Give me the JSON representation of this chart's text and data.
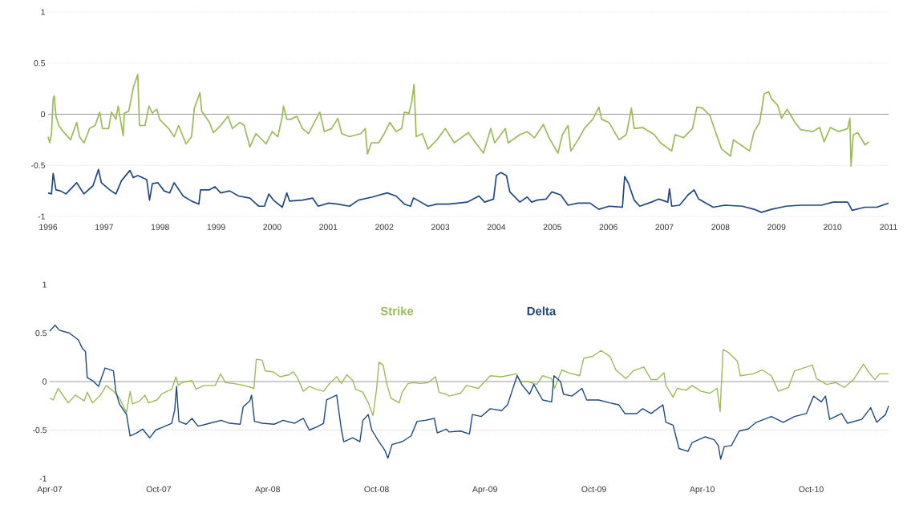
{
  "chart_data": [
    {
      "type": "line",
      "xlim": [
        1996,
        2011
      ],
      "xticks": [
        1996,
        1997,
        1998,
        1999,
        2000,
        2001,
        2002,
        2003,
        2004,
        2005,
        2006,
        2007,
        2008,
        2009,
        2010,
        2011
      ],
      "ylim": [
        -1,
        1
      ],
      "yticks": [
        -1,
        -0.5,
        0,
        0.5,
        1
      ],
      "grid": "y",
      "line_style": "solid",
      "series": [
        {
          "color": "#9bbb59",
          "x": [
            1996.0,
            1996.03,
            1996.06,
            1996.09,
            1996.11,
            1996.14,
            1996.19,
            1996.27,
            1996.4,
            1996.51,
            1996.56,
            1996.64,
            1996.74,
            1996.84,
            1996.92,
            1996.97,
            1997.08,
            1997.13,
            1997.21,
            1997.25,
            1997.34,
            1997.36,
            1997.44,
            1997.52,
            1997.6,
            1997.63,
            1997.73,
            1997.8,
            1997.86,
            1997.94,
            1997.99,
            1998.15,
            1998.25,
            1998.33,
            1998.46,
            1998.56,
            1998.61,
            1998.71,
            1998.74,
            1998.88,
            1998.95,
            1999.08,
            1999.21,
            1999.29,
            1999.42,
            1999.5,
            1999.6,
            1999.71,
            1999.89,
            2000.0,
            2000.1,
            2000.18,
            2000.2,
            2000.26,
            2000.33,
            2000.44,
            2000.54,
            2000.65,
            2000.78,
            2000.85,
            2000.93,
            2001.06,
            2001.17,
            2001.24,
            2001.38,
            2001.58,
            2001.66,
            2001.7,
            2001.77,
            2001.9,
            2002.0,
            2002.1,
            2002.21,
            2002.31,
            2002.36,
            2002.44,
            2002.49,
            2002.53,
            2002.57,
            2002.68,
            2002.78,
            2002.94,
            2003.09,
            2003.25,
            2003.32,
            2003.5,
            2003.63,
            2003.77,
            2003.9,
            2003.97,
            2004.16,
            2004.21,
            2004.42,
            2004.55,
            2004.68,
            2004.84,
            2004.94,
            2005.1,
            2005.18,
            2005.28,
            2005.33,
            2005.46,
            2005.57,
            2005.72,
            2005.83,
            2005.88,
            2006.01,
            2006.19,
            2006.32,
            2006.41,
            2006.46,
            2006.61,
            2006.82,
            2006.93,
            2007.13,
            2007.19,
            2007.34,
            2007.5,
            2007.58,
            2007.68,
            2007.81,
            2007.89,
            2008.02,
            2008.18,
            2008.23,
            2008.39,
            2008.52,
            2008.6,
            2008.7,
            2008.78,
            2008.86,
            2008.91,
            2009.02,
            2009.09,
            2009.19,
            2009.33,
            2009.43,
            2009.64,
            2009.77,
            2009.85,
            2009.96,
            2010.11,
            2010.27,
            2010.31,
            2010.33,
            2010.37,
            2010.45,
            2010.58,
            2010.65
          ],
          "values": [
            -0.22,
            -0.28,
            -0.19,
            0.15,
            0.18,
            -0.02,
            -0.11,
            -0.17,
            -0.25,
            -0.08,
            -0.22,
            -0.28,
            -0.14,
            -0.11,
            0.02,
            -0.14,
            -0.14,
            0.02,
            -0.05,
            0.08,
            -0.21,
            0.01,
            0.03,
            0.26,
            0.39,
            -0.11,
            -0.11,
            0.08,
            0.01,
            0.05,
            -0.05,
            -0.14,
            -0.22,
            -0.11,
            -0.29,
            -0.22,
            0.06,
            0.21,
            0.03,
            -0.08,
            -0.18,
            -0.11,
            -0.02,
            -0.14,
            -0.08,
            -0.11,
            -0.32,
            -0.19,
            -0.29,
            -0.17,
            -0.22,
            -0.02,
            0.08,
            -0.05,
            -0.05,
            -0.02,
            -0.14,
            -0.19,
            -0.05,
            0.02,
            -0.17,
            -0.14,
            -0.04,
            -0.19,
            -0.22,
            -0.19,
            -0.14,
            -0.39,
            -0.28,
            -0.28,
            -0.19,
            -0.08,
            -0.17,
            -0.14,
            0.02,
            0.01,
            0.12,
            0.29,
            -0.22,
            -0.19,
            -0.34,
            -0.25,
            -0.14,
            -0.28,
            -0.25,
            -0.18,
            -0.28,
            -0.38,
            -0.14,
            -0.28,
            -0.14,
            -0.28,
            -0.2,
            -0.17,
            -0.23,
            -0.1,
            -0.23,
            -0.38,
            -0.2,
            -0.11,
            -0.36,
            -0.25,
            -0.14,
            -0.05,
            0.07,
            -0.05,
            -0.08,
            -0.25,
            -0.2,
            0.06,
            -0.14,
            -0.13,
            -0.2,
            -0.28,
            -0.36,
            -0.2,
            -0.23,
            -0.14,
            0.07,
            0.06,
            -0.01,
            -0.14,
            -0.34,
            -0.41,
            -0.25,
            -0.31,
            -0.36,
            -0.17,
            -0.08,
            0.2,
            0.22,
            0.15,
            0.09,
            -0.04,
            0.05,
            -0.08,
            -0.15,
            -0.17,
            -0.13,
            -0.27,
            -0.13,
            -0.17,
            -0.14,
            -0.04,
            -0.51,
            -0.2,
            -0.18,
            -0.3,
            -0.27
          ]
        },
        {
          "color": "#1f497d",
          "x": [
            1996.0,
            1996.06,
            1996.09,
            1996.14,
            1996.22,
            1996.32,
            1996.51,
            1996.64,
            1996.8,
            1996.9,
            1996.95,
            1997.1,
            1997.21,
            1997.31,
            1997.46,
            1997.52,
            1997.6,
            1997.76,
            1997.81,
            1997.86,
            1997.96,
            1998.07,
            1998.17,
            1998.25,
            1998.41,
            1998.56,
            1998.69,
            1998.72,
            1998.88,
            1998.98,
            1999.08,
            1999.24,
            1999.4,
            1999.6,
            1999.76,
            1999.86,
            1999.94,
            2000.02,
            2000.18,
            2000.26,
            2000.31,
            2000.54,
            2000.72,
            2000.82,
            2001.01,
            2001.17,
            2001.38,
            2001.54,
            2001.79,
            2002.05,
            2002.21,
            2002.36,
            2002.47,
            2002.52,
            2002.62,
            2002.78,
            2002.94,
            2003.15,
            2003.48,
            2003.69,
            2003.79,
            2003.95,
            2004.0,
            2004.08,
            2004.18,
            2004.24,
            2004.42,
            2004.55,
            2004.63,
            2004.73,
            2004.89,
            2004.99,
            2005.15,
            2005.28,
            2005.46,
            2005.67,
            2005.83,
            2006.01,
            2006.25,
            2006.29,
            2006.36,
            2006.46,
            2006.56,
            2006.77,
            2006.9,
            2007.06,
            2007.09,
            2007.13,
            2007.27,
            2007.42,
            2007.53,
            2007.61,
            2007.71,
            2007.87,
            2008.08,
            2008.39,
            2008.6,
            2008.73,
            2008.91,
            2009.17,
            2009.43,
            2009.8,
            2010.01,
            2010.27,
            2010.35,
            2010.58,
            2010.79,
            2011.0
          ],
          "values": [
            -0.77,
            -0.78,
            -0.58,
            -0.74,
            -0.75,
            -0.78,
            -0.67,
            -0.78,
            -0.7,
            -0.54,
            -0.67,
            -0.74,
            -0.78,
            -0.65,
            -0.55,
            -0.62,
            -0.6,
            -0.64,
            -0.84,
            -0.68,
            -0.67,
            -0.75,
            -0.77,
            -0.67,
            -0.8,
            -0.85,
            -0.88,
            -0.74,
            -0.74,
            -0.71,
            -0.77,
            -0.75,
            -0.8,
            -0.82,
            -0.9,
            -0.9,
            -0.78,
            -0.84,
            -0.91,
            -0.77,
            -0.85,
            -0.84,
            -0.82,
            -0.9,
            -0.87,
            -0.88,
            -0.9,
            -0.84,
            -0.81,
            -0.77,
            -0.8,
            -0.88,
            -0.9,
            -0.82,
            -0.85,
            -0.9,
            -0.88,
            -0.88,
            -0.86,
            -0.8,
            -0.86,
            -0.83,
            -0.6,
            -0.57,
            -0.6,
            -0.76,
            -0.86,
            -0.81,
            -0.86,
            -0.84,
            -0.83,
            -0.76,
            -0.79,
            -0.89,
            -0.87,
            -0.87,
            -0.93,
            -0.9,
            -0.91,
            -0.61,
            -0.68,
            -0.84,
            -0.9,
            -0.86,
            -0.83,
            -0.86,
            -0.73,
            -0.9,
            -0.89,
            -0.79,
            -0.74,
            -0.83,
            -0.86,
            -0.91,
            -0.89,
            -0.9,
            -0.93,
            -0.96,
            -0.93,
            -0.9,
            -0.89,
            -0.89,
            -0.86,
            -0.86,
            -0.94,
            -0.91,
            -0.91,
            -0.87
          ]
        }
      ]
    },
    {
      "type": "line",
      "xlim": [
        "2007-04-01",
        "2011-02-08"
      ],
      "xticks": [
        {
          "value": "2007-04-01",
          "label": "Apr-07"
        },
        {
          "value": "2007-10-01",
          "label": "Oct-07"
        },
        {
          "value": "2008-04-01",
          "label": "Apr-08"
        },
        {
          "value": "2008-10-01",
          "label": "Oct-08"
        },
        {
          "value": "2009-04-01",
          "label": "Apr-09"
        },
        {
          "value": "2009-10-01",
          "label": "Oct-09"
        },
        {
          "value": "2010-04-01",
          "label": "Apr-10"
        },
        {
          "value": "2010-10-01",
          "label": "Oct-10"
        }
      ],
      "ylim": [
        -1,
        1
      ],
      "yticks": [
        -1,
        -0.5,
        0,
        0.5,
        1
      ],
      "line_style": "solid",
      "ref_lines": [
        {
          "axis": "y",
          "value": -0.5,
          "color": "#bfbfbf",
          "line_style": "dotted"
        }
      ],
      "series": [
        {
          "name": "Strike",
          "color": "#9bbb59",
          "x": [
            "2007-04-01",
            "2007-04-07",
            "2007-04-15",
            "2007-04-22",
            "2007-05-02",
            "2007-05-14",
            "2007-05-29",
            "2007-06-03",
            "2007-06-12",
            "2007-06-25",
            "2007-07-05",
            "2007-07-17",
            "2007-07-27",
            "2007-08-08",
            "2007-08-14",
            "2007-08-18",
            "2007-08-30",
            "2007-09-08",
            "2007-09-14",
            "2007-09-28",
            "2007-10-06",
            "2007-10-15",
            "2007-10-23",
            "2007-10-30",
            "2007-11-03",
            "2007-11-09",
            "2007-11-26",
            "2007-12-03",
            "2007-12-16",
            "2008-01-04",
            "2008-01-13",
            "2008-01-21",
            "2008-02-03",
            "2008-02-22",
            "2008-03-09",
            "2008-03-13",
            "2008-03-23",
            "2008-03-28",
            "2008-04-10",
            "2008-04-22",
            "2008-05-07",
            "2008-05-14",
            "2008-05-21",
            "2008-05-31",
            "2008-06-10",
            "2008-06-22",
            "2008-07-04",
            "2008-07-14",
            "2008-07-26",
            "2008-08-03",
            "2008-08-12",
            "2008-08-22",
            "2008-08-27",
            "2008-09-08",
            "2008-09-17",
            "2008-09-25",
            "2008-10-01",
            "2008-10-05",
            "2008-10-12",
            "2008-10-18",
            "2008-10-25",
            "2008-11-08",
            "2008-11-13",
            "2008-11-23",
            "2008-12-03",
            "2008-12-13",
            "2008-12-27",
            "2009-01-08",
            "2009-01-14",
            "2009-01-26",
            "2009-01-31",
            "2009-02-19",
            "2009-03-01",
            "2009-03-21",
            "2009-04-10",
            "2009-04-29",
            "2009-05-24",
            "2009-05-31",
            "2009-06-12",
            "2009-06-27",
            "2009-07-07",
            "2009-07-22",
            "2009-07-27",
            "2009-08-08",
            "2009-08-20",
            "2009-09-07",
            "2009-09-14",
            "2009-09-29",
            "2009-10-13",
            "2009-10-28",
            "2009-11-07",
            "2009-11-24",
            "2009-12-06",
            "2009-12-24",
            "2010-01-05",
            "2010-01-15",
            "2010-01-27",
            "2010-01-30",
            "2010-02-11",
            "2010-02-18",
            "2010-03-05",
            "2010-03-15",
            "2010-03-30",
            "2010-04-14",
            "2010-04-26",
            "2010-05-01",
            "2010-05-06",
            "2010-05-15",
            "2010-05-30",
            "2010-06-04",
            "2010-06-26",
            "2010-07-11",
            "2010-07-26",
            "2010-08-07",
            "2010-08-24",
            "2010-09-03",
            "2010-09-18",
            "2010-10-03",
            "2010-10-10",
            "2010-10-27",
            "2010-11-11",
            "2010-11-26",
            "2010-12-11",
            "2010-12-28",
            "2011-01-04",
            "2011-01-16",
            "2011-01-24",
            "2011-02-08"
          ],
          "values": [
            -0.17,
            -0.19,
            -0.07,
            -0.13,
            -0.22,
            -0.14,
            -0.2,
            -0.11,
            -0.22,
            -0.14,
            -0.04,
            -0.1,
            -0.17,
            -0.32,
            -0.1,
            -0.23,
            -0.2,
            -0.14,
            -0.22,
            -0.19,
            -0.13,
            -0.1,
            -0.08,
            0.05,
            -0.04,
            -0.01,
            0.01,
            -0.08,
            -0.04,
            -0.04,
            0.08,
            -0.01,
            -0.02,
            -0.04,
            -0.07,
            0.23,
            0.22,
            0.11,
            0.1,
            0.05,
            0.07,
            0.1,
            0.04,
            -0.1,
            -0.05,
            -0.08,
            -0.1,
            -0.02,
            0.05,
            -0.02,
            0.07,
            0.01,
            -0.08,
            -0.11,
            -0.22,
            -0.35,
            -0.08,
            0.2,
            0.17,
            -0.02,
            -0.17,
            -0.22,
            -0.11,
            -0.02,
            -0.01,
            -0.02,
            -0.01,
            0.05,
            -0.11,
            -0.13,
            -0.15,
            -0.12,
            -0.04,
            -0.07,
            0.06,
            0.05,
            0.08,
            0.0,
            0.0,
            -0.03,
            0.06,
            0.03,
            -0.07,
            0.12,
            0.09,
            0.06,
            0.24,
            0.26,
            0.32,
            0.26,
            0.12,
            0.03,
            0.11,
            0.15,
            0.02,
            0.02,
            0.09,
            -0.04,
            -0.16,
            -0.07,
            -0.09,
            -0.04,
            -0.1,
            -0.12,
            -0.07,
            -0.31,
            0.33,
            0.3,
            0.21,
            0.06,
            0.08,
            0.12,
            0.06,
            -0.1,
            -0.06,
            0.11,
            0.14,
            0.17,
            0.03,
            -0.03,
            -0.01,
            -0.06,
            0.02,
            0.18,
            0.11,
            0.02,
            0.08,
            0.08
          ]
        },
        {
          "name": "Delta",
          "color": "#1f497d",
          "x": [
            "2007-04-01",
            "2007-04-10",
            "2007-04-17",
            "2007-05-04",
            "2007-05-19",
            "2007-05-26",
            "2007-05-31",
            "2007-06-03",
            "2007-06-12",
            "2007-06-22",
            "2007-06-27",
            "2007-07-03",
            "2007-07-17",
            "2007-07-21",
            "2007-07-27",
            "2007-08-08",
            "2007-08-14",
            "2007-08-25",
            "2007-09-04",
            "2007-09-16",
            "2007-09-26",
            "2007-10-08",
            "2007-10-23",
            "2007-10-28",
            "2007-10-31",
            "2007-11-04",
            "2007-11-16",
            "2007-11-26",
            "2007-12-06",
            "2007-12-26",
            "2008-01-14",
            "2008-01-28",
            "2008-02-15",
            "2008-02-20",
            "2008-03-02",
            "2008-03-05",
            "2008-03-10",
            "2008-03-23",
            "2008-04-12",
            "2008-04-27",
            "2008-05-16",
            "2008-05-31",
            "2008-06-10",
            "2008-06-22",
            "2008-07-04",
            "2008-07-09",
            "2008-07-26",
            "2008-08-03",
            "2008-08-07",
            "2008-08-22",
            "2008-09-03",
            "2008-09-08",
            "2008-09-17",
            "2008-09-23",
            "2008-10-05",
            "2008-10-15",
            "2008-10-20",
            "2008-10-27",
            "2008-11-13",
            "2008-11-28",
            "2008-12-08",
            "2008-12-22",
            "2009-01-06",
            "2009-01-11",
            "2009-01-26",
            "2009-01-31",
            "2009-02-19",
            "2009-03-06",
            "2009-03-11",
            "2009-03-26",
            "2009-04-10",
            "2009-04-29",
            "2009-05-09",
            "2009-05-17",
            "2009-05-25",
            "2009-06-03",
            "2009-06-15",
            "2009-06-22",
            "2009-07-07",
            "2009-07-22",
            "2009-07-26",
            "2009-08-06",
            "2009-08-11",
            "2009-08-25",
            "2009-09-11",
            "2009-09-19",
            "2009-10-09",
            "2009-10-28",
            "2009-11-12",
            "2009-11-22",
            "2009-12-12",
            "2009-12-22",
            "2010-01-05",
            "2010-01-25",
            "2010-01-30",
            "2010-02-11",
            "2010-02-21",
            "2010-03-08",
            "2010-03-15",
            "2010-04-06",
            "2010-04-21",
            "2010-04-28",
            "2010-05-02",
            "2010-05-08",
            "2010-05-20",
            "2010-06-02",
            "2010-06-17",
            "2010-07-01",
            "2010-07-26",
            "2010-08-15",
            "2010-09-03",
            "2010-09-23",
            "2010-10-05",
            "2010-10-18",
            "2010-10-25",
            "2010-11-01",
            "2010-11-21",
            "2010-12-01",
            "2010-12-25",
            "2011-01-09",
            "2011-01-19",
            "2011-02-03",
            "2011-02-08"
          ],
          "values": [
            0.52,
            0.58,
            0.53,
            0.5,
            0.43,
            0.34,
            0.31,
            0.04,
            0.01,
            -0.05,
            0.04,
            0.14,
            0.11,
            -0.1,
            -0.23,
            -0.34,
            -0.56,
            -0.53,
            -0.49,
            -0.58,
            -0.5,
            -0.47,
            -0.43,
            -0.29,
            -0.05,
            -0.41,
            -0.44,
            -0.38,
            -0.46,
            -0.43,
            -0.4,
            -0.43,
            -0.44,
            -0.26,
            -0.2,
            -0.14,
            -0.41,
            -0.43,
            -0.44,
            -0.4,
            -0.43,
            -0.38,
            -0.5,
            -0.47,
            -0.43,
            -0.19,
            -0.14,
            -0.5,
            -0.62,
            -0.58,
            -0.62,
            -0.4,
            -0.34,
            -0.5,
            -0.62,
            -0.71,
            -0.79,
            -0.65,
            -0.62,
            -0.56,
            -0.41,
            -0.4,
            -0.38,
            -0.53,
            -0.49,
            -0.52,
            -0.51,
            -0.54,
            -0.34,
            -0.36,
            -0.28,
            -0.3,
            -0.24,
            -0.09,
            0.06,
            -0.04,
            -0.13,
            -0.03,
            -0.19,
            -0.21,
            0.06,
            0.0,
            -0.13,
            -0.15,
            -0.07,
            -0.19,
            -0.19,
            -0.22,
            -0.24,
            -0.33,
            -0.33,
            -0.28,
            -0.33,
            -0.24,
            -0.42,
            -0.45,
            -0.69,
            -0.72,
            -0.63,
            -0.57,
            -0.6,
            -0.66,
            -0.8,
            -0.67,
            -0.66,
            -0.51,
            -0.49,
            -0.42,
            -0.36,
            -0.42,
            -0.36,
            -0.33,
            -0.15,
            -0.21,
            -0.15,
            -0.39,
            -0.33,
            -0.43,
            -0.39,
            -0.27,
            -0.42,
            -0.34,
            -0.25
          ]
        }
      ]
    }
  ]
}
